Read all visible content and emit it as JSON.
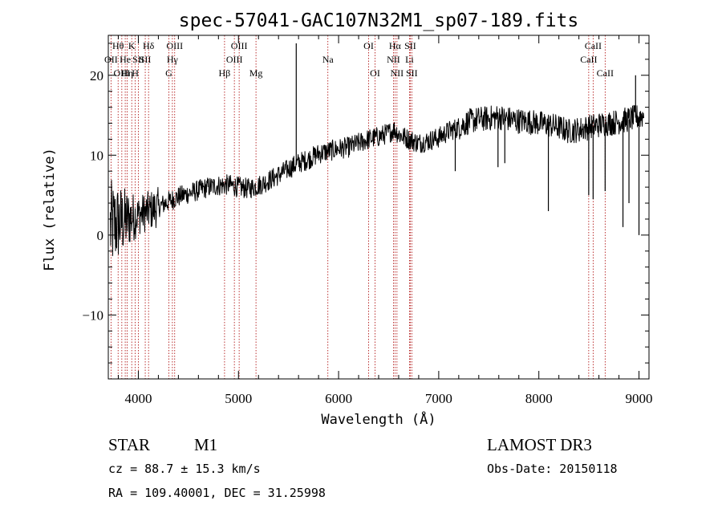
{
  "chart_data": {
    "type": "line",
    "title": "spec-57041-GAC107N32M1_sp07-189.fits",
    "xlabel": "Wavelength (Å)",
    "ylabel": "Flux (relative)",
    "xlim": [
      3700,
      9100
    ],
    "ylim": [
      -18,
      25
    ],
    "x_ticks": [
      4000,
      5000,
      6000,
      7000,
      8000,
      9000
    ],
    "x_tick_labels": [
      "4000",
      "5000",
      "6000",
      "7000",
      "8000",
      "9000"
    ],
    "y_ticks": [
      -10,
      0,
      10,
      20
    ],
    "y_tick_labels": [
      "−10",
      "0",
      "10",
      "20"
    ],
    "spectrum_trend": {
      "x": [
        3720,
        3800,
        3900,
        4000,
        4100,
        4200,
        4300,
        4400,
        4500,
        4600,
        4700,
        4800,
        4900,
        5000,
        5100,
        5200,
        5300,
        5400,
        5500,
        5600,
        5700,
        5800,
        5900,
        6000,
        6100,
        6200,
        6300,
        6400,
        6500,
        6560,
        6600,
        6700,
        6800,
        6900,
        7000,
        7100,
        7200,
        7300,
        7400,
        7500,
        7600,
        7700,
        7800,
        7900,
        8000,
        8100,
        8200,
        8300,
        8400,
        8500,
        8600,
        8700,
        8800,
        8900,
        9000,
        9050
      ],
      "y": [
        1,
        1.5,
        2,
        2.5,
        3,
        3.5,
        4.2,
        4.8,
        5.2,
        5.6,
        6,
        6.2,
        6.3,
        6,
        5.8,
        6.2,
        6.8,
        7.5,
        8.3,
        9,
        9.5,
        10.2,
        10.5,
        10.8,
        11,
        11.5,
        12,
        12.3,
        12.8,
        13.2,
        12.6,
        12,
        11.5,
        11.8,
        12.2,
        13,
        13.5,
        14.2,
        14.5,
        14.6,
        14.8,
        14.5,
        14.3,
        14.2,
        14,
        13.8,
        13.5,
        13,
        13.2,
        13.5,
        13.8,
        14,
        14.2,
        14.5,
        14.8,
        15
      ]
    },
    "spectrum_features": [
      {
        "x": 5577,
        "y": 24,
        "kind": "emission"
      },
      {
        "x": 7165,
        "y": 8,
        "kind": "absorption"
      },
      {
        "x": 7592,
        "y": 8.5,
        "kind": "absorption"
      },
      {
        "x": 7660,
        "y": 9,
        "kind": "absorption"
      },
      {
        "x": 8095,
        "y": 3,
        "kind": "absorption"
      },
      {
        "x": 8498,
        "y": 5,
        "kind": "absorption"
      },
      {
        "x": 8542,
        "y": 4.5,
        "kind": "absorption"
      },
      {
        "x": 8662,
        "y": 5.5,
        "kind": "absorption"
      },
      {
        "x": 8840,
        "y": 1,
        "kind": "absorption"
      },
      {
        "x": 8900,
        "y": 4,
        "kind": "absorption"
      },
      {
        "x": 8966,
        "y": 20,
        "kind": "emission"
      },
      {
        "x": 9000,
        "y": 0,
        "kind": "absorption"
      }
    ],
    "spectral_lines": [
      {
        "x": 3727,
        "label": "OII",
        "row": 1
      },
      {
        "x": 3798,
        "label": "Hθ",
        "row": 0
      },
      {
        "x": 3835,
        "label": "OIII",
        "row": 2
      },
      {
        "x": 3869,
        "label": "He",
        "row": 1
      },
      {
        "x": 3889,
        "label": "Hη",
        "row": 2
      },
      {
        "x": 3934,
        "label": "K",
        "row": 0
      },
      {
        "x": 3969,
        "label": "H",
        "row": 2
      },
      {
        "x": 4000,
        "label": "SII",
        "row": 1
      },
      {
        "x": 4069,
        "label": "SII",
        "row": 1
      },
      {
        "x": 4102,
        "label": "Hδ",
        "row": 0
      },
      {
        "x": 4305,
        "label": "G",
        "row": 2
      },
      {
        "x": 4340,
        "label": "Hγ",
        "row": 1
      },
      {
        "x": 4363,
        "label": "OIII",
        "row": 0
      },
      {
        "x": 4861,
        "label": "Hβ",
        "row": 2
      },
      {
        "x": 4959,
        "label": "OIII",
        "row": 1
      },
      {
        "x": 5007,
        "label": "OIII",
        "row": 0
      },
      {
        "x": 5175,
        "label": "Mg",
        "row": 2
      },
      {
        "x": 5893,
        "label": "Na",
        "row": 1
      },
      {
        "x": 6300,
        "label": "OI",
        "row": 0
      },
      {
        "x": 6364,
        "label": "OI",
        "row": 2
      },
      {
        "x": 6548,
        "label": "NII",
        "row": 1
      },
      {
        "x": 6563,
        "label": "Hα",
        "row": 0
      },
      {
        "x": 6583,
        "label": "NII",
        "row": 2
      },
      {
        "x": 6708,
        "label": "Li",
        "row": 1
      },
      {
        "x": 6716,
        "label": "SII",
        "row": 0
      },
      {
        "x": 6731,
        "label": "SII",
        "row": 2
      },
      {
        "x": 8498,
        "label": "CaII",
        "row": 1
      },
      {
        "x": 8542,
        "label": "CaII",
        "row": 0
      },
      {
        "x": 8662,
        "label": "CaII",
        "row": 2
      }
    ]
  },
  "info": {
    "class": "STAR",
    "subclass": "M1",
    "survey": "LAMOST DR3",
    "cz": "cz = 88.7 ± 15.3 km/s",
    "obs_date": "Obs-Date: 20150118",
    "radec": "RA = 109.40001, DEC =  31.25998"
  },
  "colors": {
    "axis": "#000000",
    "spectrum": "#000000",
    "line_marker": "#aa0000"
  }
}
